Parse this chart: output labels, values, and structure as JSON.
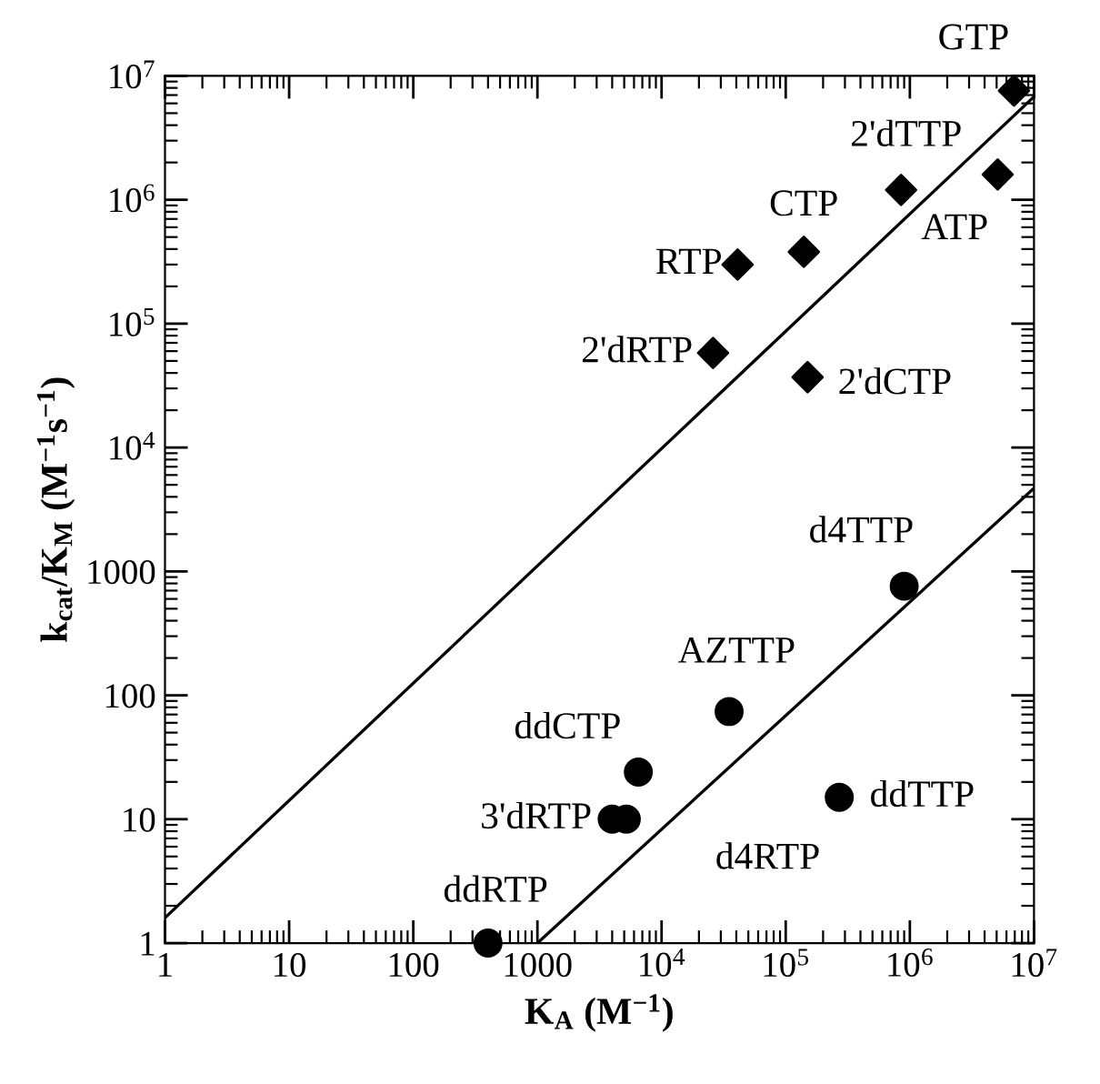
{
  "chart_data": {
    "type": "scatter",
    "log": "xy",
    "xlabel": "K$_{A}$ (M$^{−1}$)",
    "ylabel": "k$_{cat}$/K$_{M}$ (M$^{−1}$s$^{−1}$)",
    "xlim": [
      1,
      10000000
    ],
    "ylim": [
      1,
      10000000
    ],
    "xticks": [
      1,
      10,
      100,
      1000,
      {
        "value": 10000,
        "label": "10$^{4}$"
      },
      {
        "value": 100000,
        "label": "10$^{5}$"
      },
      {
        "value": 1000000,
        "label": "10$^{6}$"
      },
      {
        "value": 10000000,
        "label": "10$^{7}$"
      }
    ],
    "yticks": [
      1,
      10,
      100,
      1000,
      {
        "value": 10000,
        "label": "10$^{4}$"
      },
      {
        "value": 100000,
        "label": "10$^{5}$"
      },
      {
        "value": 1000000,
        "label": "10$^{6}$"
      },
      {
        "value": 10000000,
        "label": "10$^{7}$"
      }
    ],
    "series": [
      {
        "marker": "diamond",
        "color": "#000000",
        "x": [
          6900000,
          850000,
          5100000,
          140000,
          41000,
          26000,
          150000
        ],
        "values": [
          7600000,
          1200000,
          1600000,
          380000,
          300000,
          58000,
          37000
        ]
      },
      {
        "marker": "circle",
        "color": "#000000",
        "x": [
          900000,
          35000,
          6500,
          4000,
          5200,
          270000,
          400
        ],
        "values": [
          760,
          74,
          24,
          10,
          10,
          15,
          1
        ]
      },
      {
        "type": "line",
        "marker": "none",
        "line_style": "solid",
        "color": "#000000",
        "x": [
          1,
          10000000
        ],
        "values": [
          1.6,
          6800000
        ]
      },
      {
        "type": "line",
        "marker": "none",
        "line_style": "solid",
        "color": "#000000",
        "x": [
          1000,
          10000000
        ],
        "values": [
          1,
          4700
        ]
      }
    ],
    "annotations": [
      {
        "text": "GTP",
        "x": 6900000,
        "y": 7600000
      },
      {
        "text": "2'dTTP",
        "x": 850000,
        "y": 1200000
      },
      {
        "text": "ATP",
        "x": 5100000,
        "y": 1600000
      },
      {
        "text": "CTP",
        "x": 140000,
        "y": 380000
      },
      {
        "text": "RTP",
        "x": 41000,
        "y": 300000
      },
      {
        "text": "2'dRTP",
        "x": 26000,
        "y": 58000
      },
      {
        "text": "2'dCTP",
        "x": 150000,
        "y": 37000
      },
      {
        "text": "d4TTP",
        "x": 900000,
        "y": 760
      },
      {
        "text": "AZTTP",
        "x": 35000,
        "y": 74
      },
      {
        "text": "ddCTP",
        "x": 6500,
        "y": 24
      },
      {
        "text": "3'dRTP",
        "x": 4000,
        "y": 10
      },
      {
        "text": "d4RTP",
        "x": 5200,
        "y": 10
      },
      {
        "text": "ddTTP",
        "x": 270000,
        "y": 15
      },
      {
        "text": "ddRTP",
        "x": 400,
        "y": 1
      }
    ]
  }
}
